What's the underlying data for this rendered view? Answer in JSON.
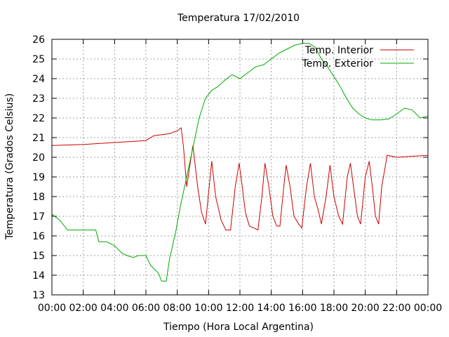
{
  "chart_data": {
    "type": "line",
    "title": "Temperatura 17/02/2010",
    "xlabel": "Tiempo (Hora Local Argentina)",
    "ylabel": "Temperatura (Grados Celsius)",
    "xlim": [
      0,
      24
    ],
    "ylim": [
      13,
      26
    ],
    "x_ticks": [
      "00:00",
      "02:00",
      "04:00",
      "06:00",
      "08:00",
      "10:00",
      "12:00",
      "14:00",
      "16:00",
      "18:00",
      "20:00",
      "22:00",
      "00:00"
    ],
    "y_ticks": [
      "13",
      "14",
      "15",
      "16",
      "17",
      "18",
      "19",
      "20",
      "21",
      "22",
      "23",
      "24",
      "25",
      "26"
    ],
    "grid": true,
    "legend_position": "top-right",
    "x_unit": "hours",
    "series": [
      {
        "name": "Temp. Interior",
        "color": "#cc0000",
        "points": [
          [
            0,
            20.6
          ],
          [
            2,
            20.65
          ],
          [
            4,
            20.75
          ],
          [
            6,
            20.85
          ],
          [
            6.5,
            21.1
          ],
          [
            7.5,
            21.2
          ],
          [
            8,
            21.35
          ],
          [
            8.25,
            21.5
          ],
          [
            8.4,
            20.5
          ],
          [
            8.6,
            18.5
          ],
          [
            8.75,
            19.3
          ],
          [
            9.0,
            20.6
          ],
          [
            9.3,
            18.5
          ],
          [
            9.55,
            17.2
          ],
          [
            9.8,
            16.6
          ],
          [
            10.2,
            19.8
          ],
          [
            10.45,
            18.0
          ],
          [
            10.8,
            16.8
          ],
          [
            11.1,
            16.3
          ],
          [
            11.4,
            16.3
          ],
          [
            11.7,
            18.5
          ],
          [
            11.95,
            19.7
          ],
          [
            12.15,
            18.5
          ],
          [
            12.35,
            17.2
          ],
          [
            12.6,
            16.5
          ],
          [
            12.9,
            16.4
          ],
          [
            13.15,
            16.3
          ],
          [
            13.4,
            18.0
          ],
          [
            13.6,
            19.7
          ],
          [
            13.85,
            18.5
          ],
          [
            14.1,
            17.0
          ],
          [
            14.35,
            16.5
          ],
          [
            14.55,
            16.5
          ],
          [
            14.8,
            18.5
          ],
          [
            14.95,
            19.6
          ],
          [
            15.2,
            18.5
          ],
          [
            15.45,
            17.0
          ],
          [
            15.75,
            16.6
          ],
          [
            15.95,
            16.4
          ],
          [
            16.25,
            18.5
          ],
          [
            16.5,
            19.7
          ],
          [
            16.75,
            18.0
          ],
          [
            17.0,
            17.3
          ],
          [
            17.2,
            16.6
          ],
          [
            17.5,
            18.0
          ],
          [
            17.75,
            19.6
          ],
          [
            18.0,
            18.0
          ],
          [
            18.3,
            17.0
          ],
          [
            18.55,
            16.6
          ],
          [
            18.85,
            19.0
          ],
          [
            19.05,
            19.7
          ],
          [
            19.25,
            18.5
          ],
          [
            19.5,
            17.0
          ],
          [
            19.7,
            16.6
          ],
          [
            20.0,
            19.0
          ],
          [
            20.25,
            19.8
          ],
          [
            20.45,
            18.5
          ],
          [
            20.65,
            17.0
          ],
          [
            20.85,
            16.6
          ],
          [
            21.05,
            18.5
          ],
          [
            21.4,
            20.1
          ],
          [
            22,
            20.0
          ],
          [
            23,
            20.05
          ],
          [
            24,
            20.1
          ]
        ]
      },
      {
        "name": "Temp. Exterior",
        "color": "#00aa00",
        "points": [
          [
            0,
            17.1
          ],
          [
            0.5,
            16.8
          ],
          [
            1,
            16.3
          ],
          [
            2,
            16.3
          ],
          [
            2.8,
            16.3
          ],
          [
            3,
            15.7
          ],
          [
            3.5,
            15.7
          ],
          [
            4,
            15.5
          ],
          [
            4.5,
            15.1
          ],
          [
            4.8,
            15.0
          ],
          [
            5.2,
            14.9
          ],
          [
            5.5,
            15.0
          ],
          [
            6,
            15.0
          ],
          [
            6.3,
            14.5
          ],
          [
            6.8,
            14.1
          ],
          [
            7,
            13.7
          ],
          [
            7.3,
            13.7
          ],
          [
            7.5,
            14.8
          ],
          [
            7.9,
            16.2
          ],
          [
            8.2,
            17.5
          ],
          [
            8.6,
            19.0
          ],
          [
            9,
            20.5
          ],
          [
            9.4,
            22.0
          ],
          [
            9.8,
            23.0
          ],
          [
            10.2,
            23.4
          ],
          [
            10.6,
            23.6
          ],
          [
            11,
            23.9
          ],
          [
            11.5,
            24.2
          ],
          [
            12,
            24.0
          ],
          [
            12.5,
            24.3
          ],
          [
            13,
            24.6
          ],
          [
            13.5,
            24.7
          ],
          [
            14,
            25.0
          ],
          [
            14.5,
            25.3
          ],
          [
            15,
            25.5
          ],
          [
            15.5,
            25.7
          ],
          [
            16,
            25.8
          ],
          [
            16.4,
            25.8
          ],
          [
            16.8,
            25.6
          ],
          [
            17.2,
            25.0
          ],
          [
            17.6,
            24.6
          ],
          [
            18,
            24.1
          ],
          [
            18.4,
            23.6
          ],
          [
            18.8,
            23.0
          ],
          [
            19.2,
            22.5
          ],
          [
            19.6,
            22.2
          ],
          [
            20.0,
            22.0
          ],
          [
            20.4,
            21.9
          ],
          [
            21,
            21.9
          ],
          [
            21.5,
            21.95
          ],
          [
            22,
            22.2
          ],
          [
            22.5,
            22.5
          ],
          [
            23,
            22.4
          ],
          [
            23.5,
            22.0
          ],
          [
            24,
            22.1
          ]
        ]
      }
    ]
  }
}
